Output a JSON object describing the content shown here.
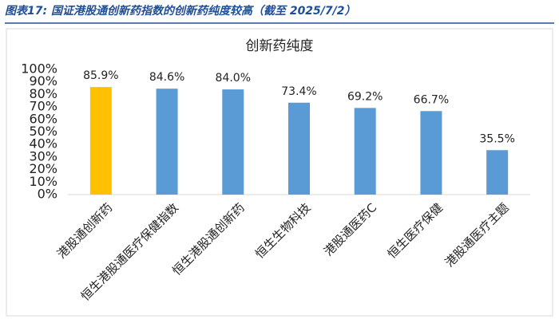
{
  "caption": "图表17: 国证港股通创新药指数的创新药纯度较高（截至 2025/7/2）",
  "chart_data": {
    "type": "bar",
    "title": "创新药纯度",
    "categories": [
      "港股通创新药",
      "恒生港股通医疗保健指数",
      "恒生港股通创新药",
      "恒生生物科技",
      "港股通医药C",
      "恒生医疗保健",
      "港股通医疗主题"
    ],
    "values": [
      85.9,
      84.6,
      84.0,
      73.4,
      69.2,
      66.7,
      35.5
    ],
    "value_labels": [
      "85.9%",
      "84.6%",
      "84.0%",
      "73.4%",
      "69.2%",
      "66.7%",
      "35.5%"
    ],
    "colors": [
      "#ffc000",
      "#5b9bd5",
      "#5b9bd5",
      "#5b9bd5",
      "#5b9bd5",
      "#5b9bd5",
      "#5b9bd5"
    ],
    "ylim": [
      0,
      100
    ],
    "yticks": [
      {
        "value": 0,
        "label": "0%"
      },
      {
        "value": 10,
        "label": "10%"
      },
      {
        "value": 20,
        "label": "20%"
      },
      {
        "value": 30,
        "label": "30%"
      },
      {
        "value": 40,
        "label": "40%"
      },
      {
        "value": 50,
        "label": "50%"
      },
      {
        "value": 60,
        "label": "60%"
      },
      {
        "value": 70,
        "label": "70%"
      },
      {
        "value": 80,
        "label": "80%"
      },
      {
        "value": 90,
        "label": "90%"
      },
      {
        "value": 100,
        "label": "100%"
      }
    ],
    "grid": false
  }
}
